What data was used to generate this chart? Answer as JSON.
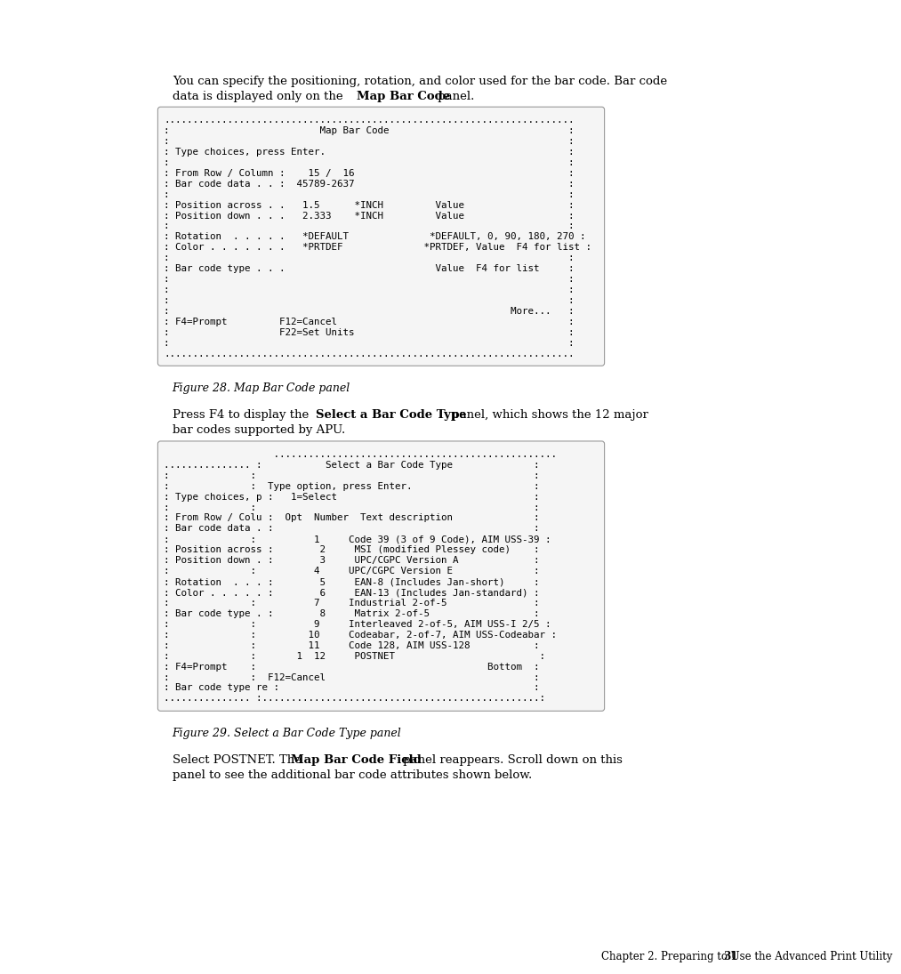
{
  "bg_color": "#ffffff",
  "text_color": "#000000",
  "font_size_body": 9.5,
  "font_size_mono": 7.8,
  "font_size_caption": 9.0,
  "font_size_footer": 8.5,
  "panel1_text": [
    ".......................................................................",
    ":                          Map Bar Code                               :",
    ":                                                                     :",
    ": Type choices, press Enter.                                          :",
    ":                                                                     :",
    ": From Row / Column :    15 /  16                                     :",
    ": Bar code data . . :  45789-2637                                     :",
    ":                                                                     :",
    ": Position across . .   1.5      *INCH         Value                  :",
    ": Position down . . .   2.333    *INCH         Value                  :",
    ":                                                                     :",
    ": Rotation  . . . . .   *DEFAULT              *DEFAULT, 0, 90, 180, 270 :",
    ": Color . . . . . . .   *PRTDEF              *PRTDEF, Value  F4 for list :",
    ":                                                                     :",
    ": Bar code type . . .                          Value  F4 for list     :",
    ":                                                                     :",
    ":                                                                     :",
    ":                                                                     :",
    ":                                                           More...   :",
    ": F4=Prompt         F12=Cancel                                        :",
    ":                   F22=Set Units                                     :",
    ":                                                                     :",
    "......................................................................."
  ],
  "panel2_text": [
    "                   .................................................",
    "............... :           Select a Bar Code Type              :",
    ":              :                                                :",
    ":              :  Type option, press Enter.                     :",
    ": Type choices, p :   1=Select                                  :",
    ":              :                                                :",
    ": From Row / Colu :  Opt  Number  Text description              :",
    ": Bar code data . :                                             :",
    ":              :          1     Code 39 (3 of 9 Code), AIM USS-39 :",
    ": Position across :        2     MSI (modified Plessey code)    :",
    ": Position down . :        3     UPC/CGPC Version A             :",
    ":              :          4     UPC/CGPC Version E              :",
    ": Rotation  . . . :        5     EAN-8 (Includes Jan-short)     :",
    ": Color . . . . . :        6     EAN-13 (Includes Jan-standard) :",
    ":              :          7     Industrial 2-of-5               :",
    ": Bar code type . :        8     Matrix 2-of-5                  :",
    ":              :          9     Interleaved 2-of-5, AIM USS-I 2/5 :",
    ":              :         10     Codeabar, 2-of-7, AIM USS-Codeabar :",
    ":              :         11     Code 128, AIM USS-128           :",
    ":              :       1  12     POSTNET                         :",
    ": F4=Prompt    :                                        Bottom  :",
    ":              :  F12=Cancel                                    :",
    ": Bar code type re :                                            :",
    "............... :................................................:"
  ],
  "caption1": "Figure 28. Map Bar Code panel",
  "caption2": "Figure 29. Select a Bar Code Type panel",
  "footer_left": "Chapter 2. Preparing to Use the Advanced Print Utility",
  "footer_page": "31"
}
